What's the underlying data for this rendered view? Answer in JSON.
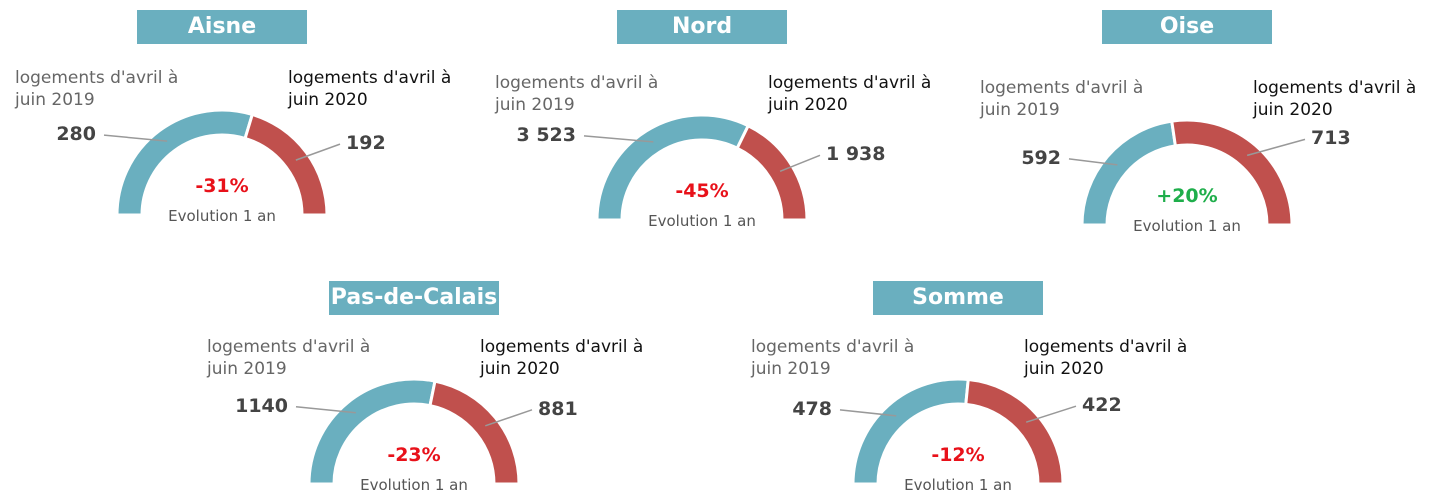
{
  "chart_data": [
    {
      "type": "pie",
      "title": "Aisne",
      "categories": [
        "logements d'avril à juin 2019",
        "logements d'avril à juin 2020"
      ],
      "values": [
        280,
        192
      ],
      "value_labels": [
        "280",
        "192"
      ],
      "colors": [
        "#6aafbf",
        "#c0504d"
      ],
      "evolution": {
        "value": -31,
        "label": "-31%"
      },
      "evolution_caption": "Evolution 1 an"
    },
    {
      "type": "pie",
      "title": "Nord",
      "categories": [
        "logements d'avril à juin 2019",
        "logements d'avril à juin 2020"
      ],
      "values": [
        3523,
        1938
      ],
      "value_labels": [
        "3 523",
        "1 938"
      ],
      "colors": [
        "#6aafbf",
        "#c0504d"
      ],
      "evolution": {
        "value": -45,
        "label": "-45%"
      },
      "evolution_caption": "Evolution 1 an"
    },
    {
      "type": "pie",
      "title": "Oise",
      "categories": [
        "logements d'avril à juin 2019",
        "logements d'avril à juin 2020"
      ],
      "values": [
        592,
        713
      ],
      "value_labels": [
        "592",
        "713"
      ],
      "colors": [
        "#6aafbf",
        "#c0504d"
      ],
      "evolution": {
        "value": 20,
        "label": "+20%"
      },
      "evolution_caption": "Evolution 1 an"
    },
    {
      "type": "pie",
      "title": "Pas-de-Calais",
      "categories": [
        "logements d'avril à juin 2019",
        "logements d'avril à juin 2020"
      ],
      "values": [
        1140,
        881
      ],
      "value_labels": [
        "1140",
        "881"
      ],
      "colors": [
        "#6aafbf",
        "#c0504d"
      ],
      "evolution": {
        "value": -23,
        "label": "-23%"
      },
      "evolution_caption": "Evolution 1 an"
    },
    {
      "type": "pie",
      "title": "Somme",
      "categories": [
        "logements d'avril à juin 2019",
        "logements d'avril à juin 2020"
      ],
      "values": [
        478,
        422
      ],
      "value_labels": [
        "478",
        "422"
      ],
      "colors": [
        "#6aafbf",
        "#c0504d"
      ],
      "evolution": {
        "value": -12,
        "label": "-12%"
      },
      "evolution_caption": "Evolution 1 an"
    }
  ]
}
